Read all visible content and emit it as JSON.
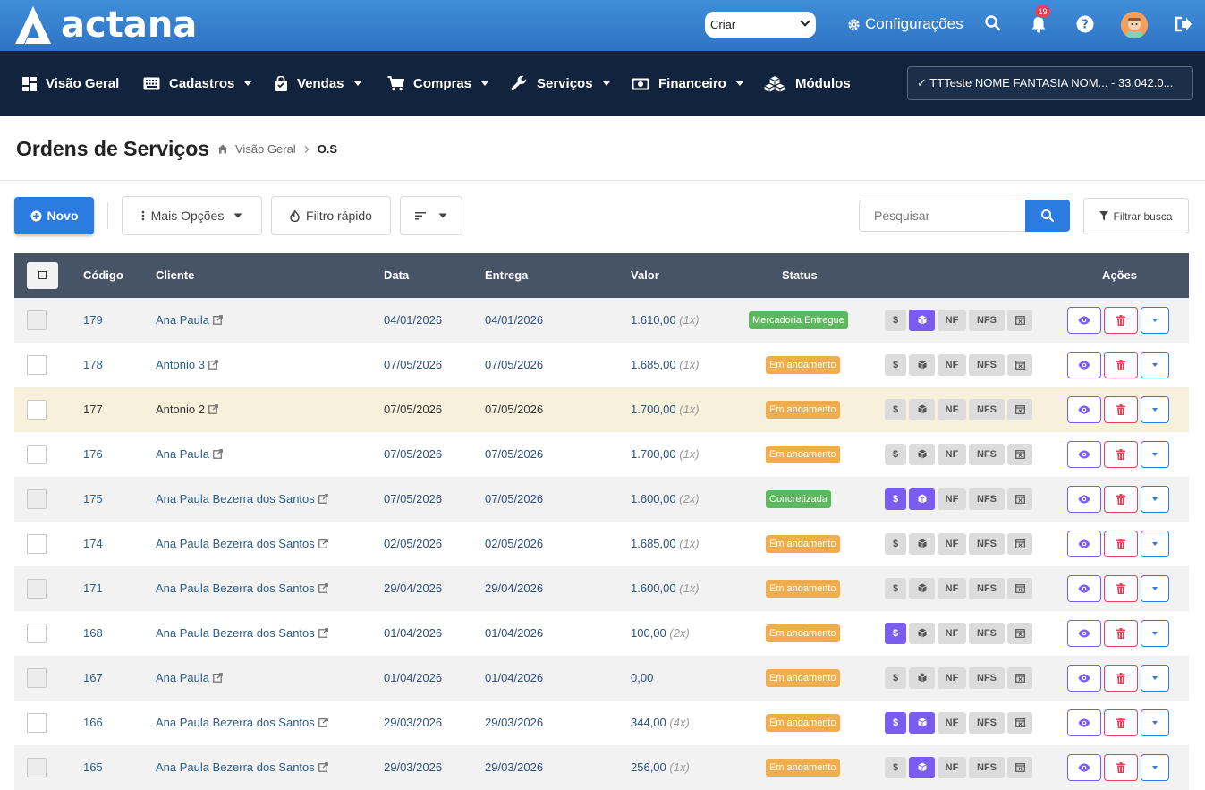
{
  "brand": {
    "name": "actana"
  },
  "topbar": {
    "criar_label": "Criar",
    "config_label": "Configurações",
    "notifications_count": "19"
  },
  "nav": [
    {
      "label": "Visão Geral",
      "icon": "dashboard-icon",
      "dropdown": false
    },
    {
      "label": "Cadastros",
      "icon": "keyboard-icon",
      "dropdown": true
    },
    {
      "label": "Vendas",
      "icon": "shopping-bag-icon",
      "dropdown": true
    },
    {
      "label": "Compras",
      "icon": "cart-icon",
      "dropdown": true
    },
    {
      "label": "Serviços",
      "icon": "wrench-icon",
      "dropdown": true
    },
    {
      "label": "Financeiro",
      "icon": "money-icon",
      "dropdown": true
    },
    {
      "label": "Módulos",
      "icon": "cubes-icon",
      "dropdown": false
    }
  ],
  "company_selector": "✓ TTTeste NOME FANTASIA NOM... - 33.042.0...",
  "page": {
    "title": "Ordens de Serviços",
    "breadcrumb": [
      "Visão Geral",
      "O.S"
    ]
  },
  "toolbar": {
    "novo_label": "Novo",
    "mais_opcoes_label": "Mais Opções",
    "filtro_rapido_label": "Filtro rápido",
    "search_placeholder": "Pesquisar",
    "filtrar_label": "Filtrar busca"
  },
  "table": {
    "columns": {
      "codigo": "Código",
      "cliente": "Cliente",
      "data": "Data",
      "entrega": "Entrega",
      "valor": "Valor",
      "status": "Status",
      "acoes": "Ações"
    },
    "service_button_labels": {
      "money": "$",
      "box": "",
      "nf": "NF",
      "nfs": "NFS",
      "cal": ""
    },
    "rows": [
      {
        "codigo": "179",
        "cliente": "Ana Paula",
        "data": "04/01/2026",
        "entrega": "04/01/2026",
        "valor": "1.610,00",
        "parcelas": "(1x)",
        "status": "Mercadoria Entregue",
        "status_color": "#5cb85c",
        "money_on": false,
        "box_on": true
      },
      {
        "codigo": "178",
        "cliente": "Antonio 3",
        "data": "07/05/2026",
        "entrega": "07/05/2026",
        "valor": "1.685,00",
        "parcelas": "(1x)",
        "status": "Em andamento",
        "status_color": "#f0ad4e",
        "money_on": false,
        "box_on": false
      },
      {
        "codigo": "177",
        "cliente": "Antonio 2",
        "data": "07/05/2026",
        "entrega": "07/05/2026",
        "valor": "1.700,00",
        "parcelas": "(1x)",
        "status": "Em andamento",
        "status_color": "#f0ad4e",
        "money_on": false,
        "box_on": false
      },
      {
        "codigo": "176",
        "cliente": "Ana Paula",
        "data": "07/05/2026",
        "entrega": "07/05/2026",
        "valor": "1.700,00",
        "parcelas": "(1x)",
        "status": "Em andamento",
        "status_color": "#f0ad4e",
        "money_on": false,
        "box_on": false
      },
      {
        "codigo": "175",
        "cliente": "Ana Paula Bezerra dos Santos",
        "data": "07/05/2026",
        "entrega": "07/05/2026",
        "valor": "1.600,00",
        "parcelas": "(2x)",
        "status": "Concretizada",
        "status_color": "#5cb85c",
        "money_on": true,
        "box_on": true
      },
      {
        "codigo": "174",
        "cliente": "Ana Paula Bezerra dos Santos",
        "data": "02/05/2026",
        "entrega": "02/05/2026",
        "valor": "1.685,00",
        "parcelas": "(1x)",
        "status": "Em andamento",
        "status_color": "#f0ad4e",
        "money_on": false,
        "box_on": false
      },
      {
        "codigo": "171",
        "cliente": "Ana Paula Bezerra dos Santos",
        "data": "29/04/2026",
        "entrega": "29/04/2026",
        "valor": "1.600,00",
        "parcelas": "(1x)",
        "status": "Em andamento",
        "status_color": "#f0ad4e",
        "money_on": false,
        "box_on": false
      },
      {
        "codigo": "168",
        "cliente": "Ana Paula Bezerra dos Santos",
        "data": "01/04/2026",
        "entrega": "01/04/2026",
        "valor": "100,00",
        "parcelas": "(2x)",
        "status": "Em andamento",
        "status_color": "#f0ad4e",
        "money_on": true,
        "box_on": false
      },
      {
        "codigo": "167",
        "cliente": "Ana Paula",
        "data": "01/04/2026",
        "entrega": "01/04/2026",
        "valor": "0,00",
        "parcelas": "",
        "status": "Em andamento",
        "status_color": "#f0ad4e",
        "money_on": false,
        "box_on": false
      },
      {
        "codigo": "166",
        "cliente": "Ana Paula Bezerra dos Santos",
        "data": "29/03/2026",
        "entrega": "29/03/2026",
        "valor": "344,00",
        "parcelas": "(4x)",
        "status": "Em andamento",
        "status_color": "#f0ad4e",
        "money_on": true,
        "box_on": true
      },
      {
        "codigo": "165",
        "cliente": "Ana Paula Bezerra dos Santos",
        "data": "29/03/2026",
        "entrega": "29/03/2026",
        "valor": "256,00",
        "parcelas": "(1x)",
        "status": "Em andamento",
        "status_color": "#f0ad4e",
        "money_on": false,
        "box_on": true
      }
    ]
  }
}
